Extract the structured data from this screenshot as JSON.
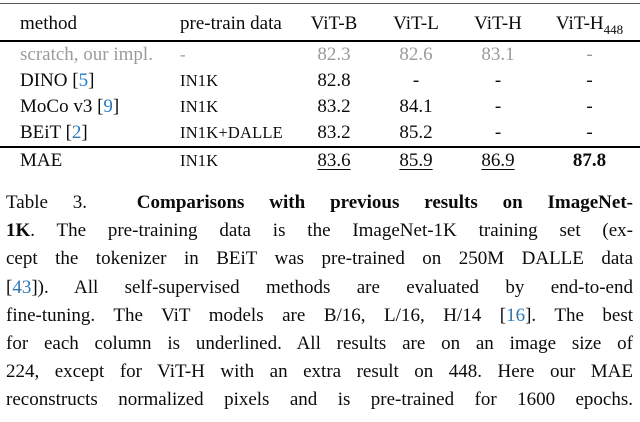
{
  "colors": {
    "citation_blue": "#2878bd",
    "muted_gray": "#9b9b9b",
    "rule_black": "#000000"
  },
  "table": {
    "columns": [
      {
        "label": "method",
        "align": "left"
      },
      {
        "label": "pre-train data",
        "align": "left"
      },
      {
        "label": "ViT-B"
      },
      {
        "label": "ViT-L"
      },
      {
        "label": "ViT-H"
      },
      {
        "label": "ViT-H",
        "sub": "448"
      }
    ],
    "rows": [
      {
        "method": [
          {
            "t": "scratch, our impl.",
            "s": "n"
          }
        ],
        "pretrain": "-",
        "values": [
          "82.3",
          "82.6",
          "83.1",
          "-"
        ],
        "muted": true
      },
      {
        "method": [
          {
            "t": "DINO [",
            "s": "n"
          },
          {
            "t": "5",
            "s": "c"
          },
          {
            "t": "]",
            "s": "n"
          }
        ],
        "pretrain": "IN1K",
        "values": [
          "82.8",
          "-",
          "-",
          "-"
        ]
      },
      {
        "method": [
          {
            "t": "MoCo v3 [",
            "s": "n"
          },
          {
            "t": "9",
            "s": "c"
          },
          {
            "t": "]",
            "s": "n"
          }
        ],
        "pretrain": "IN1K",
        "values": [
          "83.2",
          "84.1",
          "-",
          "-"
        ]
      },
      {
        "method": [
          {
            "t": "BEiT [",
            "s": "n"
          },
          {
            "t": "2",
            "s": "c"
          },
          {
            "t": "]",
            "s": "n"
          }
        ],
        "pretrain": "IN1K+DALLE",
        "values": [
          "83.2",
          "85.2",
          "-",
          "-"
        ]
      },
      {
        "method": [
          {
            "t": "MAE",
            "s": "n"
          }
        ],
        "pretrain": "IN1K",
        "rule_above": true,
        "values": [
          {
            "text": "83.6",
            "underline": true
          },
          {
            "text": "85.9",
            "underline": true
          },
          {
            "text": "86.9",
            "underline": true
          },
          {
            "text": "87.8",
            "bold": true
          }
        ]
      }
    ]
  },
  "caption": {
    "lines": [
      [
        {
          "t": "Table 3.  ",
          "s": "n"
        },
        {
          "t": "Comparisons with previous results on ImageNet-",
          "s": "b"
        }
      ],
      [
        {
          "t": "1K",
          "s": "b"
        },
        {
          "t": ". The pre-training data is the ImageNet-1K training set (ex-",
          "s": "n"
        }
      ],
      [
        {
          "t": "cept the tokenizer in BEiT was pre-trained on 250M DALLE data",
          "s": "n"
        }
      ],
      [
        {
          "t": "[",
          "s": "n"
        },
        {
          "t": "43",
          "s": "c"
        },
        {
          "t": "]). All self-supervised methods are evaluated by end-to-end",
          "s": "n"
        }
      ],
      [
        {
          "t": "fine-tuning. The ViT models are B/16, L/16, H/14 [",
          "s": "n"
        },
        {
          "t": "16",
          "s": "c"
        },
        {
          "t": "]. The best",
          "s": "n"
        }
      ],
      [
        {
          "t": "for each column is underlined. All results are on an image size of",
          "s": "n"
        }
      ],
      [
        {
          "t": "224, except for ViT-H with an extra result on 448. Here our MAE",
          "s": "n"
        }
      ],
      [
        {
          "t": "reconstructs normalized pixels and is pre-trained for 1600 epochs.",
          "s": "n"
        }
      ]
    ]
  }
}
